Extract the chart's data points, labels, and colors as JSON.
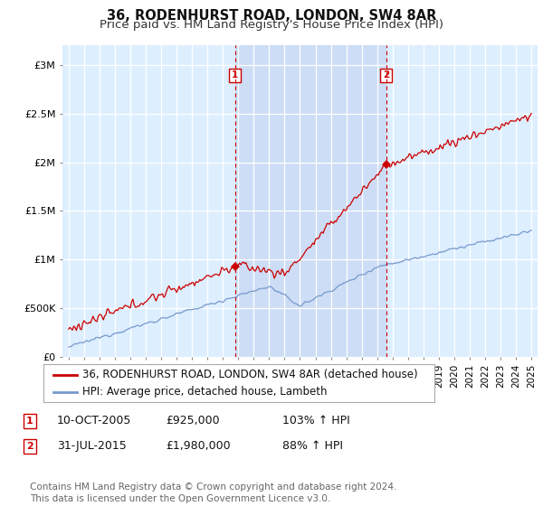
{
  "title": "36, RODENHURST ROAD, LONDON, SW4 8AR",
  "subtitle": "Price paid vs. HM Land Registry's House Price Index (HPI)",
  "ylabel_ticks": [
    "£0",
    "£500K",
    "£1M",
    "£1.5M",
    "£2M",
    "£2.5M",
    "£3M"
  ],
  "ytick_values": [
    0,
    500000,
    1000000,
    1500000,
    2000000,
    2500000,
    3000000
  ],
  "ylim": [
    0,
    3200000
  ],
  "xlim_start": 1994.6,
  "xlim_end": 2025.4,
  "background_chart": "#ddeeff",
  "background_fig": "#ffffff",
  "grid_color": "#ffffff",
  "red_color": "#cc0000",
  "blue_color": "#7799cc",
  "shade_color": "#ccddf5",
  "marker1_x": 2005.78,
  "marker1_y": 925000,
  "marker2_x": 2015.58,
  "marker2_y": 1980000,
  "vline1_x": 2005.78,
  "vline2_x": 2015.58,
  "legend_label_red": "36, RODENHURST ROAD, LONDON, SW4 8AR (detached house)",
  "legend_label_blue": "HPI: Average price, detached house, Lambeth",
  "table_entries": [
    {
      "num": "1",
      "date": "10-OCT-2005",
      "price": "£925,000",
      "hpi": "103% ↑ HPI"
    },
    {
      "num": "2",
      "date": "31-JUL-2015",
      "price": "£1,980,000",
      "hpi": "88% ↑ HPI"
    }
  ],
  "footnote": "Contains HM Land Registry data © Crown copyright and database right 2024.\nThis data is licensed under the Open Government Licence v3.0.",
  "title_fontsize": 10.5,
  "subtitle_fontsize": 9.5,
  "tick_fontsize": 8,
  "legend_fontsize": 8.5,
  "table_fontsize": 9,
  "footnote_fontsize": 7.5
}
